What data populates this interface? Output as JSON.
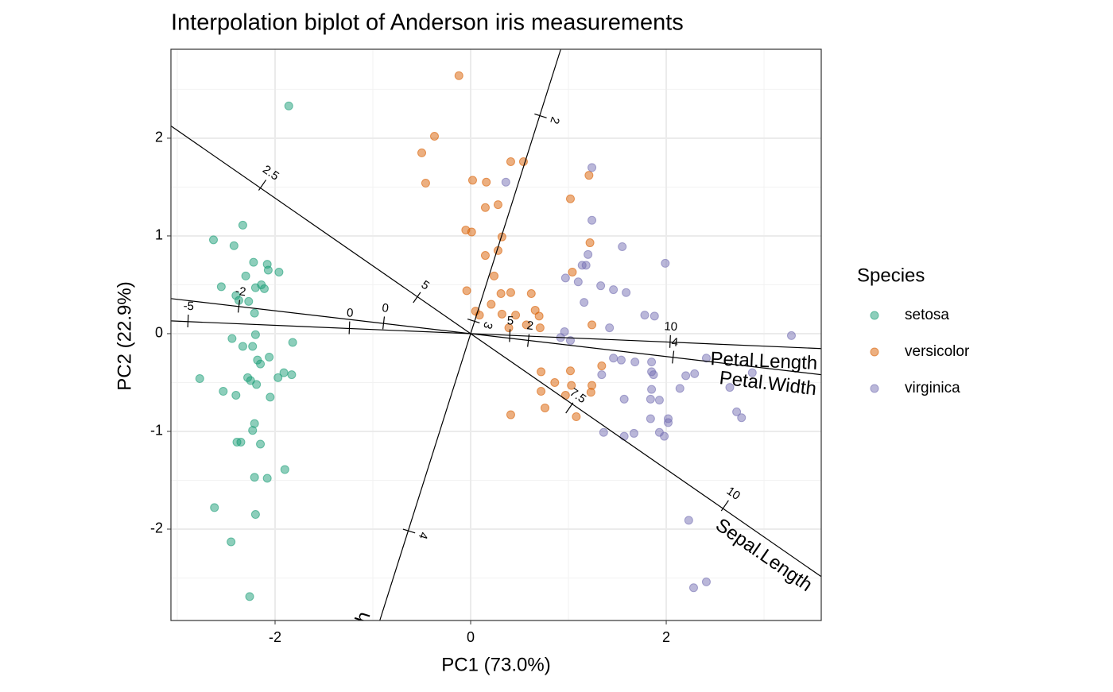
{
  "chart_data": {
    "type": "biplot",
    "title": "Interpolation biplot of Anderson iris measurements",
    "x_label": "PC1 (73.0%)",
    "y_label": "PC2 (22.9%)",
    "legend_title": "Species",
    "xlim": [
      -3.065,
      3.585
    ],
    "ylim": [
      -2.935,
      2.91
    ],
    "xticks": [
      -2,
      0,
      2
    ],
    "yticks": [
      -2,
      -1,
      0,
      1,
      2
    ],
    "x_minor_breaks": [
      -3,
      -1,
      1,
      3
    ],
    "y_minor_breaks": [
      -2.5,
      -1.5,
      -0.5,
      0.5,
      1.5,
      2.5
    ],
    "grid": true,
    "legend_position": "right",
    "series": [
      {
        "name": "setosa",
        "color": "#1b9e77",
        "x": [
          -1.86,
          -2.63,
          -2.33,
          -2.42,
          -2.22,
          -2.08,
          -2.07,
          -1.96,
          -2.3,
          -2.55,
          -2.2,
          -2.14,
          -2.11,
          -2.4,
          -2.37,
          -2.27,
          -2.21,
          -2.2,
          -2.44,
          -1.82,
          -2.33,
          -2.23,
          -2.18,
          -2.06,
          -2.15,
          -2.77,
          -2.28,
          -2.25,
          -1.91,
          -1.83,
          -1.97,
          -2.19,
          -2.53,
          -2.4,
          -2.05,
          -2.21,
          -2.23,
          -2.39,
          -2.35,
          -2.15,
          -1.9,
          -2.21,
          -2.08,
          -2.62,
          -2.2,
          -2.45,
          -2.26
        ],
        "y": [
          2.33,
          0.96,
          1.11,
          0.9,
          0.73,
          0.71,
          0.65,
          0.63,
          0.59,
          0.48,
          0.47,
          0.5,
          0.46,
          0.39,
          0.34,
          0.33,
          0.21,
          -0.01,
          -0.05,
          -0.09,
          -0.13,
          -0.13,
          -0.27,
          -0.24,
          -0.31,
          -0.46,
          -0.45,
          -0.48,
          -0.4,
          -0.42,
          -0.45,
          -0.52,
          -0.59,
          -0.63,
          -0.65,
          -0.92,
          -0.99,
          -1.11,
          -1.11,
          -1.13,
          -1.39,
          -1.47,
          -1.48,
          -1.78,
          -1.85,
          -2.13,
          -2.69
        ]
      },
      {
        "name": "versicolor",
        "color": "#d95f02",
        "x": [
          -0.12,
          -0.37,
          -0.5,
          -0.46,
          0.02,
          0.16,
          0.41,
          0.54,
          1.02,
          1.21,
          0.15,
          0.28,
          -0.05,
          0.01,
          0.32,
          1.22,
          0.15,
          0.28,
          0.24,
          1.04,
          0.41,
          -0.04,
          0.62,
          0.31,
          0.05,
          0.09,
          0.21,
          0.32,
          0.46,
          0.66,
          0.7,
          0.57,
          0.71,
          1.24,
          0.39,
          1.34,
          0.72,
          1.02,
          0.72,
          1.24,
          1.03,
          0.86,
          0.97,
          1.23,
          0.76,
          0.41,
          1.08
        ],
        "y": [
          2.64,
          2.02,
          1.85,
          1.54,
          1.57,
          1.55,
          1.76,
          1.76,
          1.38,
          1.62,
          1.29,
          1.32,
          1.06,
          1.04,
          0.99,
          0.93,
          0.8,
          0.85,
          0.59,
          0.63,
          0.42,
          0.44,
          0.41,
          0.41,
          0.23,
          0.19,
          0.3,
          0.2,
          0.19,
          0.24,
          0.18,
          0.09,
          0.06,
          0.09,
          0.06,
          -0.33,
          -0.39,
          -0.38,
          -0.59,
          -0.53,
          -0.53,
          -0.5,
          -0.63,
          -0.6,
          -0.76,
          -0.83,
          -0.85
        ]
      },
      {
        "name": "virginica",
        "color": "#7570b3",
        "x": [
          0.36,
          1.24,
          1.24,
          1.55,
          1.2,
          1.18,
          1.14,
          1.99,
          0.97,
          1.33,
          1.46,
          1.59,
          1.16,
          1.1,
          1.78,
          1.88,
          1.42,
          0.96,
          0.92,
          1.02,
          3.28,
          1.34,
          1.46,
          1.54,
          1.68,
          1.85,
          1.87,
          2.2,
          2.29,
          2.41,
          2.65,
          2.88,
          2.14,
          1.85,
          1.57,
          1.84,
          1.93,
          2.02,
          2.02,
          1.84,
          1.36,
          1.57,
          1.67,
          1.93,
          1.98,
          2.72,
          2.77,
          2.23,
          2.41,
          2.28,
          1.85
        ],
        "y": [
          1.55,
          1.7,
          1.16,
          0.89,
          0.81,
          0.7,
          0.7,
          0.72,
          0.57,
          0.49,
          0.45,
          0.42,
          0.32,
          0.53,
          0.19,
          0.18,
          0.06,
          0.02,
          -0.04,
          -0.07,
          -0.02,
          -0.42,
          -0.25,
          -0.27,
          -0.29,
          -0.39,
          -0.42,
          -0.43,
          -0.41,
          -0.25,
          -0.55,
          -0.4,
          -0.56,
          -0.57,
          -0.67,
          -0.67,
          -0.68,
          -0.87,
          -0.91,
          -0.87,
          -1.01,
          -1.05,
          -1.02,
          -1.01,
          -1.05,
          -0.8,
          -0.86,
          -1.91,
          -2.54,
          -2.6,
          -0.29
        ]
      }
    ],
    "biplot_axes": [
      {
        "name": "Sepal.Length",
        "ticks": [
          {
            "value": 2.5,
            "x": -2.13,
            "y": 1.52
          },
          {
            "value": 5,
            "x": -0.55,
            "y": 0.37
          },
          {
            "value": 7.5,
            "x": 1.01,
            "y": -0.76
          },
          {
            "value": 10,
            "x": 2.6,
            "y": -1.76
          }
        ]
      },
      {
        "name": "Sepal.Width",
        "ticks": [
          {
            "value": 2,
            "x": 0.715,
            "y": 2.228
          },
          {
            "value": 3,
            "x": 0.03,
            "y": 0.13
          },
          {
            "value": 4,
            "x": -0.63,
            "y": -2.02
          }
        ]
      },
      {
        "name": "Petal.Length",
        "ticks": [
          {
            "value": -5,
            "x": -2.89,
            "y": 0.13
          },
          {
            "value": 0,
            "x": -1.24,
            "y": 0.06
          },
          {
            "value": 5,
            "x": 0.4,
            "y": -0.02
          },
          {
            "value": 10,
            "x": 2.04,
            "y": -0.08
          }
        ]
      },
      {
        "name": "Petal.Width",
        "ticks": [
          {
            "value": -2,
            "x": -2.37,
            "y": 0.28
          },
          {
            "value": 0,
            "x": -0.89,
            "y": 0.11
          },
          {
            "value": 2,
            "x": 0.59,
            "y": -0.07
          },
          {
            "value": 4,
            "x": 2.07,
            "y": -0.24
          }
        ]
      }
    ]
  }
}
